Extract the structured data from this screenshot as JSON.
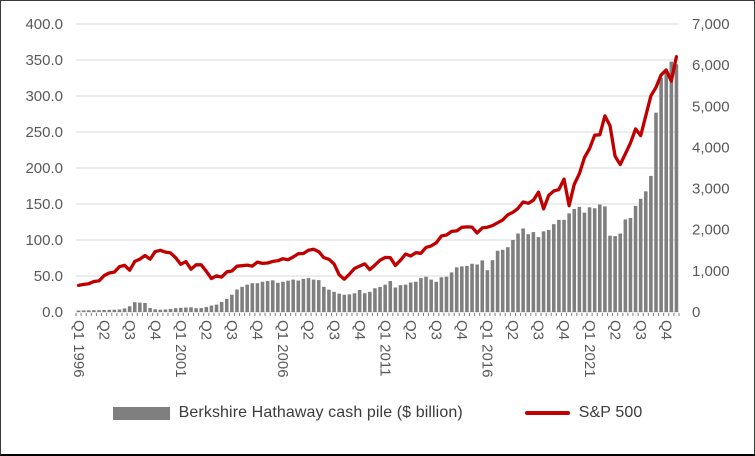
{
  "chart_data": {
    "type": "bar+line combo",
    "title": "",
    "categories": [
      "Q1 1996",
      "Q2 1996",
      "Q3 1996",
      "Q4 1996",
      "Q1 1997",
      "Q2 1997",
      "Q3 1997",
      "Q4 1997",
      "Q1 1998",
      "Q2 1998",
      "Q3 1998",
      "Q4 1998",
      "Q1 1999",
      "Q2 1999",
      "Q3 1999",
      "Q4 1999",
      "Q1 2000",
      "Q2 2000",
      "Q3 2000",
      "Q4 2000",
      "Q1 2001",
      "Q2 2001",
      "Q3 2001",
      "Q4 2001",
      "Q1 2002",
      "Q2 2002",
      "Q3 2002",
      "Q4 2002",
      "Q1 2003",
      "Q2 2003",
      "Q3 2003",
      "Q4 2003",
      "Q1 2004",
      "Q2 2004",
      "Q3 2004",
      "Q4 2004",
      "Q1 2005",
      "Q2 2005",
      "Q3 2005",
      "Q4 2005",
      "Q1 2006",
      "Q2 2006",
      "Q3 2006",
      "Q4 2006",
      "Q1 2007",
      "Q2 2007",
      "Q3 2007",
      "Q4 2007",
      "Q1 2008",
      "Q2 2008",
      "Q3 2008",
      "Q4 2008",
      "Q1 2009",
      "Q2 2009",
      "Q3 2009",
      "Q4 2009",
      "Q1 2010",
      "Q2 2010",
      "Q3 2010",
      "Q4 2010",
      "Q1 2011",
      "Q2 2011",
      "Q3 2011",
      "Q4 2011",
      "Q1 2012",
      "Q2 2012",
      "Q3 2012",
      "Q4 2012",
      "Q1 2013",
      "Q2 2013",
      "Q3 2013",
      "Q4 2013",
      "Q1 2014",
      "Q2 2014",
      "Q3 2014",
      "Q4 2014",
      "Q1 2015",
      "Q2 2015",
      "Q3 2015",
      "Q4 2015",
      "Q1 2016",
      "Q2 2016",
      "Q3 2016",
      "Q4 2016",
      "Q1 2017",
      "Q2 2017",
      "Q3 2017",
      "Q4 2017",
      "Q1 2018",
      "Q2 2018",
      "Q3 2018",
      "Q4 2018",
      "Q1 2019",
      "Q2 2019",
      "Q3 2019",
      "Q4 2019",
      "Q1 2020",
      "Q2 2020",
      "Q3 2020",
      "Q4 2020",
      "Q1 2021",
      "Q2 2021",
      "Q3 2021",
      "Q4 2021",
      "Q1 2022",
      "Q2 2022",
      "Q3 2022",
      "Q4 2022",
      "Q1 2023",
      "Q2 2023",
      "Q3 2023",
      "Q4 2023",
      "Q1 2024",
      "Q2 2024",
      "Q3 2024",
      "Q4 2024",
      "Q1 2025",
      "Q2 2025"
    ],
    "series": [
      {
        "name": "Berkshire Hathaway cash pile ($ billion)",
        "type": "bar",
        "axis": "left",
        "color": "#7f7f7f",
        "values": [
          2.0,
          2.2,
          2.4,
          2.5,
          2.5,
          2.8,
          3.0,
          3.2,
          3.5,
          5.0,
          8.0,
          13.6,
          13.0,
          12.5,
          5.5,
          3.8,
          3.2,
          3.5,
          4.2,
          5.3,
          5.8,
          6.2,
          6.5,
          5.3,
          5.5,
          7.0,
          9.0,
          10.3,
          14.0,
          18.0,
          24.0,
          31.3,
          35.0,
          38.0,
          40.0,
          40.0,
          42.0,
          43.0,
          44.0,
          40.5,
          42.0,
          43.5,
          45.0,
          43.7,
          46.0,
          47.0,
          45.0,
          44.3,
          35.0,
          31.0,
          28.0,
          25.5,
          24.0,
          24.5,
          26.0,
          30.6,
          26.0,
          28.0,
          33.0,
          34.8,
          38.0,
          43.0,
          34.0,
          37.3,
          38.0,
          41.0,
          42.0,
          47.0,
          49.0,
          45.0,
          42.0,
          48.2,
          49.0,
          55.0,
          62.0,
          63.3,
          64.0,
          67.0,
          66.0,
          71.7,
          58.0,
          72.0,
          85.0,
          86.4,
          90.0,
          100.0,
          109.0,
          116.0,
          108.0,
          111.0,
          104.0,
          112.0,
          114.0,
          122.0,
          128.0,
          128.0,
          137.0,
          143.0,
          146.0,
          138.0,
          145.4,
          144.1,
          149.2,
          146.7,
          106.0,
          105.4,
          109.0,
          128.6,
          130.6,
          147.4,
          157.2,
          167.6,
          189.0,
          276.9,
          325.2,
          334.2,
          347.7,
          344.1
        ]
      },
      {
        "name": "S&P 500",
        "type": "line",
        "axis": "right",
        "color": "#c00000",
        "values": [
          646,
          671,
          687,
          741,
          757,
          885,
          947,
          970,
          1102,
          1134,
          1017,
          1229,
          1286,
          1373,
          1283,
          1469,
          1499,
          1455,
          1437,
          1320,
          1160,
          1224,
          1041,
          1148,
          1147,
          990,
          815,
          880,
          848,
          975,
          996,
          1112,
          1126,
          1141,
          1115,
          1212,
          1181,
          1191,
          1229,
          1248,
          1295,
          1270,
          1336,
          1418,
          1421,
          1503,
          1527,
          1468,
          1323,
          1280,
          1166,
          903,
          798,
          919,
          1057,
          1115,
          1169,
          1031,
          1141,
          1258,
          1326,
          1321,
          1131,
          1258,
          1408,
          1362,
          1441,
          1426,
          1569,
          1606,
          1682,
          1848,
          1872,
          1960,
          1972,
          2059,
          2068,
          2063,
          1920,
          2044,
          2060,
          2099,
          2168,
          2239,
          2363,
          2423,
          2519,
          2674,
          2641,
          2718,
          2914,
          2507,
          2834,
          2942,
          2977,
          3231,
          2585,
          3100,
          3363,
          3756,
          3973,
          4298,
          4307,
          4766,
          4530,
          3785,
          3586,
          3840,
          4109,
          4450,
          4288,
          4770,
          5254,
          5460,
          5762,
          5882,
          5612,
          6205
        ]
      }
    ],
    "left_axis": {
      "min": 0,
      "max": 400,
      "step": 50,
      "tick_labels": [
        "400.0",
        "350.0",
        "300.0",
        "250.0",
        "200.0",
        "150.0",
        "100.0",
        "50.0",
        "0.0"
      ],
      "label_color": "#595959"
    },
    "right_axis": {
      "min": 0,
      "max": 7000,
      "step": 1000,
      "tick_labels": [
        "7,000",
        "6,000",
        "5,000",
        "4,000",
        "3,000",
        "2,000",
        "1,000",
        "0"
      ],
      "label_color": "#595959"
    },
    "x_axis": {
      "tick_interval": 5,
      "tick_labels": [
        "Q1 1996",
        "Q2",
        "Q3",
        "Q4",
        "Q1 2001",
        "Q2",
        "Q3",
        "Q4",
        "Q1 2006",
        "Q2",
        "Q3",
        "Q4",
        "Q1 2011",
        "Q2",
        "Q3",
        "Q4",
        "Q1 2016",
        "Q2",
        "Q3",
        "Q4",
        "Q1 2021",
        "Q2",
        "Q3",
        "Q4"
      ],
      "label_rotation_deg": 90,
      "label_color": "#595959"
    },
    "grid": {
      "show": true,
      "color": "#d9d9d9"
    },
    "legend": {
      "position": "bottom",
      "items": [
        {
          "label": "Berkshire Hathaway cash pile ($ billion)",
          "swatch": "bar",
          "color": "#7f7f7f"
        },
        {
          "label": "S&P 500",
          "swatch": "line",
          "color": "#c00000"
        }
      ]
    }
  }
}
